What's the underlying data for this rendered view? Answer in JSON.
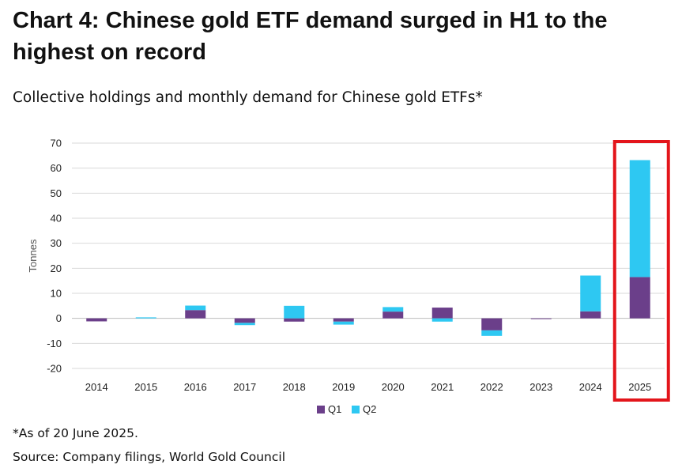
{
  "header": {
    "title_line1": "Chart 4: Chinese gold ETF demand surged in H1 to the",
    "title_line2": "highest on record",
    "subtitle": "Collective holdings and monthly demand for Chinese gold ETFs*"
  },
  "footer": {
    "note": "*As of 20 June 2025.",
    "source": "Source: Company filings, World Gold Council"
  },
  "colors": {
    "q1": "#6b3f8a",
    "q2": "#2ec8f2",
    "highlight": "#e3151b",
    "grid": "#d9d9d9"
  },
  "chart_data": {
    "type": "bar",
    "stacked": true,
    "categories": [
      "2014",
      "2015",
      "2016",
      "2017",
      "2018",
      "2019",
      "2020",
      "2021",
      "2022",
      "2023",
      "2024",
      "2025"
    ],
    "series": [
      {
        "name": "Q1",
        "values": [
          -1.2,
          0.0,
          3.3,
          -1.8,
          -1.3,
          -1.3,
          2.7,
          4.3,
          -4.8,
          -0.3,
          2.8,
          16.5
        ]
      },
      {
        "name": "Q2",
        "values": [
          0.0,
          0.4,
          1.8,
          -0.9,
          5.0,
          -1.2,
          1.8,
          -1.3,
          -2.2,
          0.0,
          14.3,
          46.7
        ]
      }
    ],
    "ylabel": "Tonnes",
    "ylim": [
      -20,
      70
    ],
    "yticks": [
      70,
      60,
      50,
      40,
      30,
      20,
      10,
      0,
      -10,
      -20
    ],
    "grid": true,
    "legend": "bottom-center",
    "highlighted_category": "2025"
  }
}
